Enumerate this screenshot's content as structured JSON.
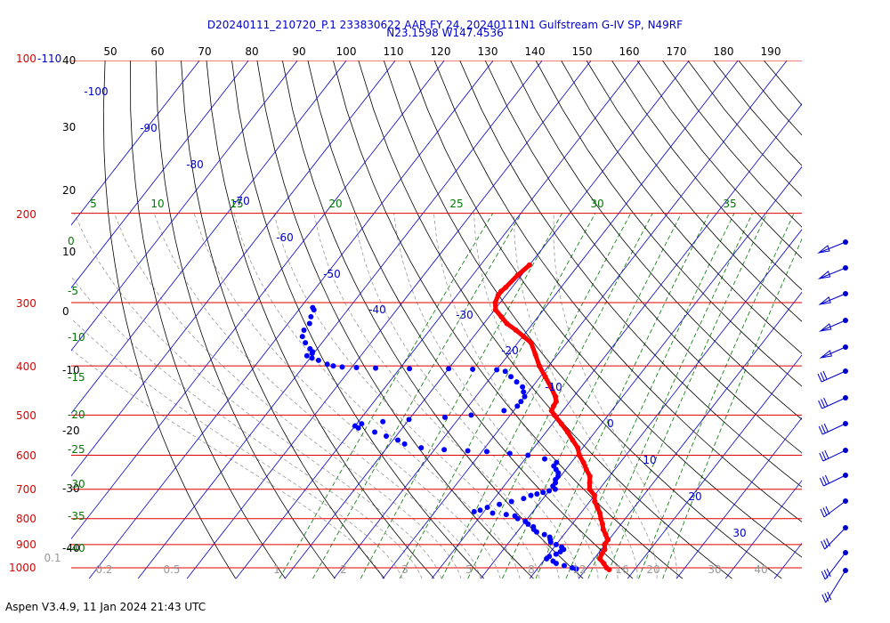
{
  "header": {
    "title_line1": "D20240111_210720_P.1 233830622 AAR FY 24, 20240111N1 Gulfstream G-IV SP, N49RF",
    "title_line2": "N23.1598 W147.4536"
  },
  "footer": {
    "version": "Aspen V3.4.9, 11 Jan 2024  21:43 UTC"
  },
  "colors": {
    "isobar": "#dd0000",
    "isotherm": "#0000cc",
    "dry_adiabat": "#000000",
    "moist_adiabat": "#999999",
    "mixing_ratio": "#007700",
    "temperature": "#ff0000",
    "dewpoint": "#0000ff",
    "wind": "#0000cc"
  },
  "chart_data": {
    "type": "skew-t log-p",
    "pressure_levels": [
      "100-110",
      "200",
      "300",
      "400",
      "500",
      "600",
      "700",
      "800",
      "900",
      "1000"
    ],
    "top_ticks": [
      "50",
      "60",
      "70",
      "80",
      "90",
      "100",
      "110",
      "120",
      "130",
      "140",
      "150",
      "160",
      "170",
      "180",
      "190"
    ],
    "left_black_labels": [
      "40",
      "30",
      "20",
      "10",
      "0",
      "-10",
      "-20",
      "-30",
      "-40"
    ],
    "mixing_ratio_labels_left": [
      "0",
      "-5",
      "-10",
      "-15",
      "-20",
      "-25",
      "-30",
      "-35",
      "-40"
    ],
    "mixing_ratio_labels_top": [
      "5",
      "10",
      "15",
      "20",
      "25",
      "30",
      "35"
    ],
    "isotherm_labels": [
      "-100",
      "-90",
      "-80",
      "-70",
      "-60",
      "-50",
      "-40",
      "-30",
      "-20",
      "-10",
      "0",
      "10",
      "20",
      "30"
    ],
    "bottom_labels": [
      "0.1",
      "0.2",
      "0.5",
      "1",
      "2",
      "3",
      "5",
      "8",
      "12",
      "16",
      "20",
      "30",
      "40"
    ],
    "temperature": [
      [
        253,
        -40.0
      ],
      [
        265,
        -40.8
      ],
      [
        280,
        -41.3
      ],
      [
        285,
        -41.6
      ],
      [
        290,
        -41.6
      ],
      [
        300,
        -41.0
      ],
      [
        310,
        -39.8
      ],
      [
        320,
        -37.5
      ],
      [
        330,
        -35.3
      ],
      [
        340,
        -32.4
      ],
      [
        350,
        -29.8
      ],
      [
        360,
        -27.3
      ],
      [
        380,
        -24.5
      ],
      [
        400,
        -21.9
      ],
      [
        420,
        -19.0
      ],
      [
        440,
        -16.2
      ],
      [
        460,
        -13.7
      ],
      [
        470,
        -12.8
      ],
      [
        480,
        -12.6
      ],
      [
        490,
        -12.3
      ],
      [
        500,
        -11.0
      ],
      [
        520,
        -8.2
      ],
      [
        540,
        -5.6
      ],
      [
        560,
        -3.3
      ],
      [
        580,
        -1.0
      ],
      [
        600,
        0.5
      ],
      [
        620,
        2.5
      ],
      [
        640,
        4.2
      ],
      [
        660,
        6.0
      ],
      [
        680,
        7.0
      ],
      [
        700,
        8.0
      ],
      [
        720,
        10.0
      ],
      [
        740,
        11.0
      ],
      [
        760,
        12.5
      ],
      [
        780,
        13.9
      ],
      [
        800,
        15.0
      ],
      [
        820,
        16.2
      ],
      [
        840,
        17.2
      ],
      [
        860,
        18.5
      ],
      [
        880,
        19.8
      ],
      [
        900,
        19.9
      ],
      [
        920,
        20.7
      ],
      [
        940,
        20.8
      ],
      [
        960,
        21.2
      ],
      [
        980,
        22.7
      ],
      [
        1000,
        24.0
      ],
      [
        1008,
        24.8
      ]
    ],
    "dewpoint": [
      [
        307,
        -77.5
      ],
      [
        310,
        -76.9
      ],
      [
        320,
        -76.4
      ],
      [
        330,
        -75.6
      ],
      [
        340,
        -75.7
      ],
      [
        350,
        -75.0
      ],
      [
        360,
        -73.4
      ],
      [
        370,
        -71.5
      ],
      [
        375,
        -70.5
      ],
      [
        378,
        -70.3
      ],
      [
        382,
        -71.0
      ],
      [
        386,
        -69.6
      ],
      [
        390,
        -67.9
      ],
      [
        397,
        -65.5
      ],
      [
        400,
        -64.0
      ],
      [
        402,
        -62.0
      ],
      [
        403,
        -59.0
      ],
      [
        404,
        -55.0
      ],
      [
        405,
        -48.0
      ],
      [
        405,
        -40.0
      ],
      [
        406,
        -35.0
      ],
      [
        407,
        -30.0
      ],
      [
        410,
        -28.0
      ],
      [
        420,
        -26.0
      ],
      [
        430,
        -24.0
      ],
      [
        440,
        -22.0
      ],
      [
        450,
        -21.0
      ],
      [
        460,
        -20.0
      ],
      [
        470,
        -20.0
      ],
      [
        480,
        -20.0
      ],
      [
        490,
        -22.0
      ],
      [
        500,
        -28.0
      ],
      [
        505,
        -33.0
      ],
      [
        510,
        -40.0
      ],
      [
        515,
        -45.0
      ],
      [
        520,
        -49.0
      ],
      [
        525,
        -50.0
      ],
      [
        530,
        -49.0
      ],
      [
        540,
        -45.0
      ],
      [
        550,
        -42.0
      ],
      [
        560,
        -39.0
      ],
      [
        570,
        -37.0
      ],
      [
        580,
        -33.0
      ],
      [
        585,
        -28.0
      ],
      [
        588,
        -23.0
      ],
      [
        590,
        -19.0
      ],
      [
        595,
        -14.0
      ],
      [
        600,
        -10.0
      ],
      [
        610,
        -6.0
      ],
      [
        620,
        -3.0
      ],
      [
        630,
        -3.0
      ],
      [
        640,
        -2.0
      ],
      [
        650,
        -1.0
      ],
      [
        660,
        -0.5
      ],
      [
        670,
        -0.5
      ],
      [
        680,
        0.0
      ],
      [
        690,
        0.0
      ],
      [
        700,
        1.0
      ],
      [
        705,
        0.0
      ],
      [
        710,
        -1.0
      ],
      [
        715,
        -2.0
      ],
      [
        720,
        -3.0
      ],
      [
        730,
        -4.0
      ],
      [
        740,
        -6.0
      ],
      [
        750,
        -8.0
      ],
      [
        760,
        -10.0
      ],
      [
        770,
        -11.0
      ],
      [
        775,
        -12.0
      ],
      [
        780,
        -8.0
      ],
      [
        785,
        -5.0
      ],
      [
        790,
        -3.0
      ],
      [
        800,
        -2.0
      ],
      [
        810,
        0.0
      ],
      [
        820,
        1.0
      ],
      [
        830,
        2.5
      ],
      [
        840,
        3.0
      ],
      [
        850,
        4.0
      ],
      [
        860,
        6.0
      ],
      [
        870,
        7.5
      ],
      [
        880,
        8.0
      ],
      [
        890,
        8.5
      ],
      [
        900,
        10.0
      ],
      [
        910,
        11.5
      ],
      [
        920,
        12.3
      ],
      [
        930,
        12.0
      ],
      [
        940,
        11.5
      ],
      [
        950,
        10.5
      ],
      [
        960,
        10.3
      ],
      [
        970,
        12.0
      ],
      [
        980,
        13.0
      ],
      [
        990,
        15.0
      ],
      [
        1000,
        17.0
      ],
      [
        1005,
        18.0
      ]
    ]
  }
}
